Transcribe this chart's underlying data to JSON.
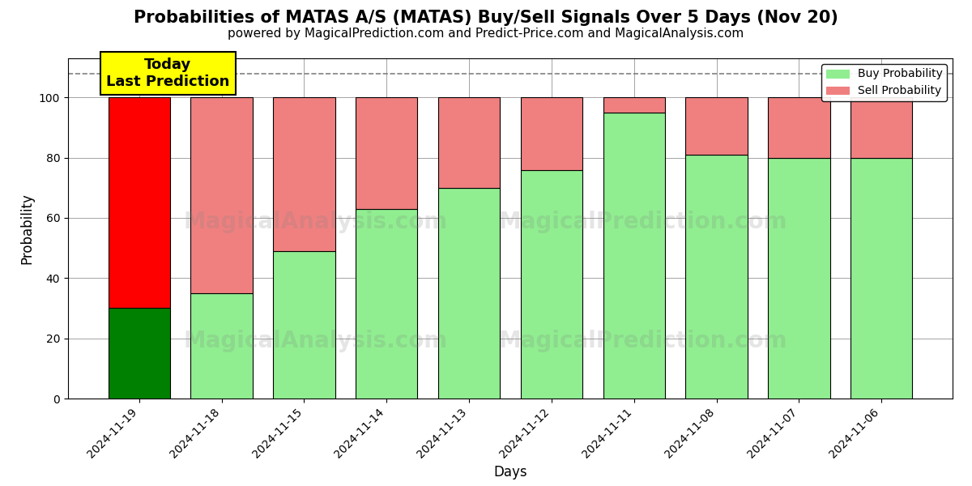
{
  "title": "Probabilities of MATAS A/S (MATAS) Buy/Sell Signals Over 5 Days (Nov 20)",
  "subtitle": "powered by MagicalPrediction.com and Predict-Price.com and MagicalAnalysis.com",
  "xlabel": "Days",
  "ylabel": "Probability",
  "categories": [
    "2024-11-19",
    "2024-11-18",
    "2024-11-15",
    "2024-11-14",
    "2024-11-13",
    "2024-11-12",
    "2024-11-11",
    "2024-11-08",
    "2024-11-07",
    "2024-11-06"
  ],
  "buy_values": [
    30,
    35,
    49,
    63,
    70,
    76,
    95,
    81,
    80,
    80
  ],
  "sell_values": [
    70,
    65,
    51,
    37,
    30,
    24,
    5,
    19,
    20,
    20
  ],
  "buy_colors": [
    "#008000",
    "#90EE90",
    "#90EE90",
    "#90EE90",
    "#90EE90",
    "#90EE90",
    "#90EE90",
    "#90EE90",
    "#90EE90",
    "#90EE90"
  ],
  "sell_colors": [
    "#FF0000",
    "#F08080",
    "#F08080",
    "#F08080",
    "#F08080",
    "#F08080",
    "#F08080",
    "#F08080",
    "#F08080",
    "#F08080"
  ],
  "ylim": [
    0,
    113
  ],
  "yticks": [
    0,
    20,
    40,
    60,
    80,
    100
  ],
  "dashed_line_y": 108,
  "annotation_text": "Today\nLast Prediction",
  "annotation_bar_index": 0,
  "legend_buy_color": "#90EE90",
  "legend_sell_color": "#F08080",
  "background_color": "#ffffff",
  "title_fontsize": 15,
  "subtitle_fontsize": 11,
  "bar_width": 0.75
}
